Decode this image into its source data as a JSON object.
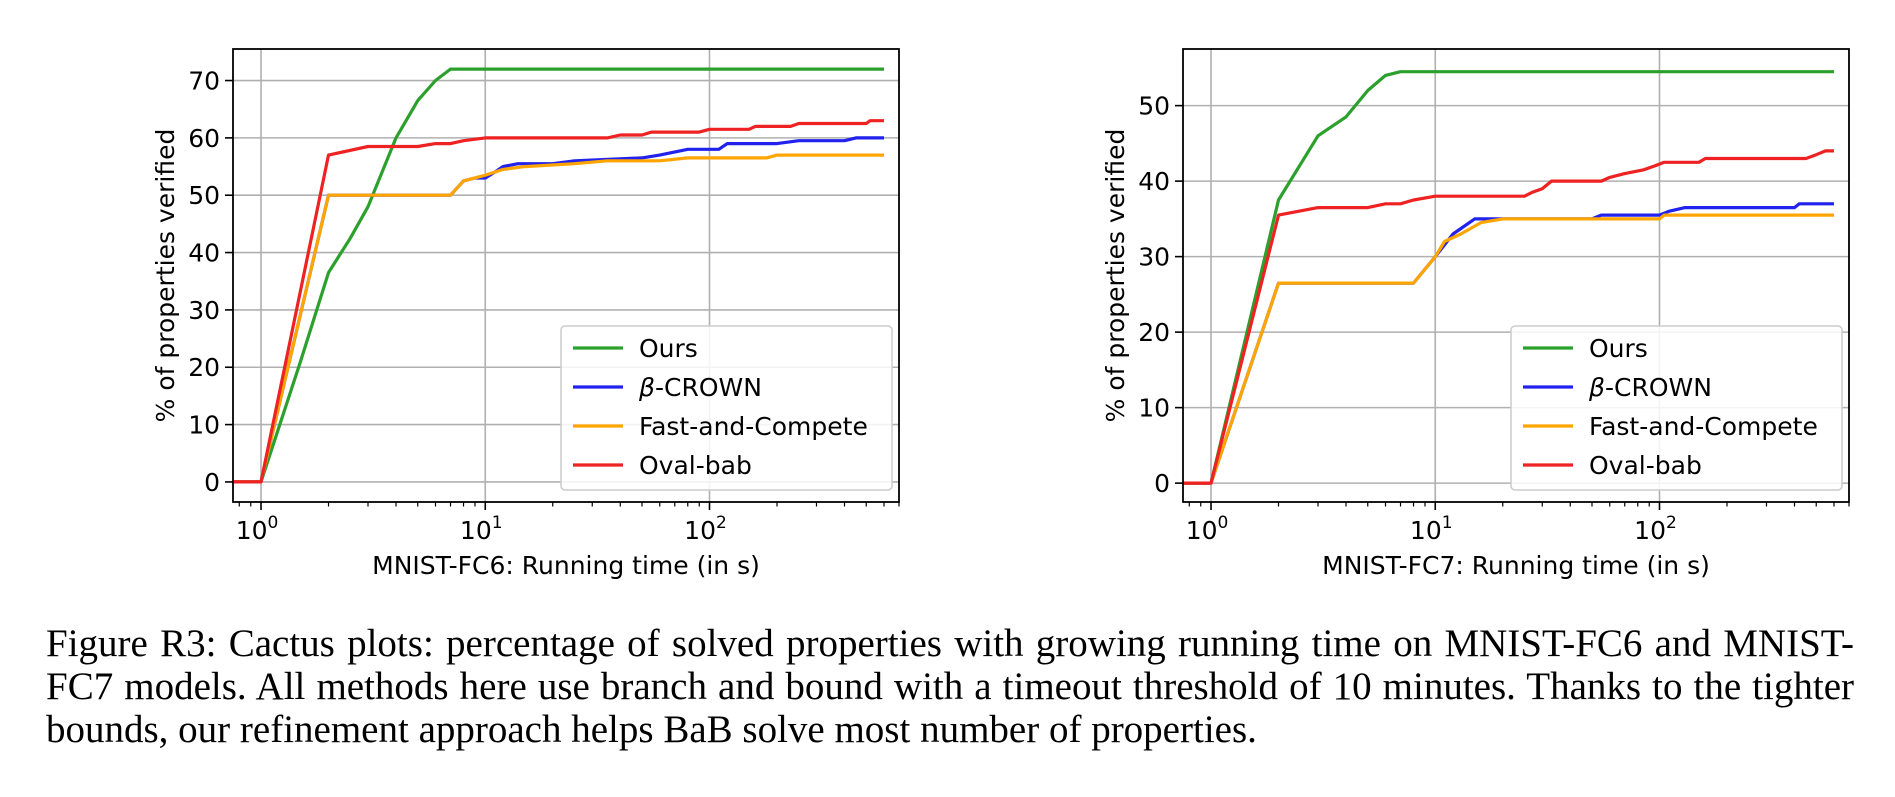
{
  "figure": {
    "caption": "Figure R3: Cactus plots: percentage of solved properties with growing running time on MNIST-FC6 and MNIST-FC7 models. All methods here use branch and bound with a timeout threshold of 10 minutes. Thanks to the tighter bounds, our refinement approach helps BaB solve most number of properties."
  },
  "colors": {
    "Ours": "#2ca02c",
    "beta-CROWN": "#2222ee",
    "Fast-and-Compete": "#ffa500",
    "Oval-bab": "#ee2222",
    "grid": "#b0b0b0"
  },
  "chart_data": [
    {
      "type": "line",
      "title": "",
      "xlabel": "MNIST-FC6: Running time (in s)",
      "ylabel": "% of properties verified",
      "xscale": "log",
      "xlim": [
        0.75,
        700
      ],
      "ylim": [
        -3.5,
        75.5
      ],
      "yticks": [
        0,
        10,
        20,
        30,
        40,
        50,
        60,
        70
      ],
      "xticks": [
        {
          "value": 1,
          "base": "10",
          "exp": "0"
        },
        {
          "value": 10,
          "base": "10",
          "exp": "1"
        },
        {
          "value": 100,
          "base": "10",
          "exp": "2"
        }
      ],
      "grid": true,
      "legend_position": "lower-right",
      "series": [
        {
          "name": "Ours",
          "label": "Ours",
          "points": [
            [
              0.75,
              0
            ],
            [
              1,
              0
            ],
            [
              1.5,
              21
            ],
            [
              2,
              36.5
            ],
            [
              2.5,
              42.5
            ],
            [
              3,
              48
            ],
            [
              4,
              60
            ],
            [
              5,
              66.5
            ],
            [
              6,
              70
            ],
            [
              7,
              72
            ],
            [
              600,
              72
            ]
          ]
        },
        {
          "name": "beta-CROWN",
          "label": "-CROWN",
          "label_prefix": "β",
          "points": [
            [
              0.75,
              0
            ],
            [
              1,
              0
            ],
            [
              2,
              50
            ],
            [
              7,
              50
            ],
            [
              8,
              52.5
            ],
            [
              9,
              53
            ],
            [
              10,
              53
            ],
            [
              11,
              54
            ],
            [
              12,
              55
            ],
            [
              14,
              55.5
            ],
            [
              20,
              55.5
            ],
            [
              25,
              56
            ],
            [
              50,
              56.5
            ],
            [
              60,
              57
            ],
            [
              80,
              58
            ],
            [
              110,
              58
            ],
            [
              120,
              59
            ],
            [
              200,
              59
            ],
            [
              250,
              59.5
            ],
            [
              400,
              59.5
            ],
            [
              450,
              60
            ],
            [
              600,
              60
            ]
          ]
        },
        {
          "name": "Fast-and-Compete",
          "label": "Fast-and-Compete",
          "points": [
            [
              0.75,
              0
            ],
            [
              1,
              0
            ],
            [
              2,
              50
            ],
            [
              7,
              50
            ],
            [
              8,
              52.5
            ],
            [
              10,
              53.5
            ],
            [
              12,
              54.5
            ],
            [
              15,
              55
            ],
            [
              25,
              55.5
            ],
            [
              35,
              56
            ],
            [
              60,
              56
            ],
            [
              80,
              56.5
            ],
            [
              180,
              56.5
            ],
            [
              200,
              57
            ],
            [
              600,
              57
            ]
          ]
        },
        {
          "name": "Oval-bab",
          "label": "Oval-bab",
          "points": [
            [
              0.75,
              0
            ],
            [
              1,
              0
            ],
            [
              2,
              57
            ],
            [
              3,
              58.5
            ],
            [
              4.5,
              58.5
            ],
            [
              5,
              58.5
            ],
            [
              6,
              59
            ],
            [
              7,
              59
            ],
            [
              8,
              59.5
            ],
            [
              10,
              60
            ],
            [
              35,
              60
            ],
            [
              40,
              60.5
            ],
            [
              50,
              60.5
            ],
            [
              55,
              61
            ],
            [
              90,
              61
            ],
            [
              100,
              61.5
            ],
            [
              150,
              61.5
            ],
            [
              160,
              62
            ],
            [
              230,
              62
            ],
            [
              250,
              62.5
            ],
            [
              500,
              62.5
            ],
            [
              520,
              63
            ],
            [
              600,
              63
            ]
          ]
        }
      ]
    },
    {
      "type": "line",
      "title": "",
      "xlabel": "MNIST-FC7: Running time (in s)",
      "ylabel": "% of properties verified",
      "xscale": "log",
      "xlim": [
        0.75,
        700
      ],
      "ylim": [
        -2.5,
        57.5
      ],
      "yticks": [
        0,
        10,
        20,
        30,
        40,
        50
      ],
      "xticks": [
        {
          "value": 1,
          "base": "10",
          "exp": "0"
        },
        {
          "value": 10,
          "base": "10",
          "exp": "1"
        },
        {
          "value": 100,
          "base": "10",
          "exp": "2"
        }
      ],
      "grid": true,
      "legend_position": "lower-right",
      "series": [
        {
          "name": "Ours",
          "label": "Ours",
          "points": [
            [
              0.75,
              0
            ],
            [
              1,
              0
            ],
            [
              2,
              37.5
            ],
            [
              3,
              46
            ],
            [
              4,
              48.5
            ],
            [
              5,
              52
            ],
            [
              6,
              54
            ],
            [
              7,
              54.5
            ],
            [
              600,
              54.5
            ]
          ]
        },
        {
          "name": "beta-CROWN",
          "label": "-CROWN",
          "label_prefix": "β",
          "points": [
            [
              0.75,
              0
            ],
            [
              1,
              0
            ],
            [
              2,
              26.5
            ],
            [
              8,
              26.5
            ],
            [
              10,
              30
            ],
            [
              12,
              33
            ],
            [
              15,
              35
            ],
            [
              50,
              35
            ],
            [
              55,
              35.5
            ],
            [
              100,
              35.5
            ],
            [
              110,
              36
            ],
            [
              130,
              36.5
            ],
            [
              400,
              36.5
            ],
            [
              420,
              37
            ],
            [
              600,
              37
            ]
          ]
        },
        {
          "name": "Fast-and-Compete",
          "label": "Fast-and-Compete",
          "points": [
            [
              0.75,
              0
            ],
            [
              1,
              0
            ],
            [
              2,
              26.5
            ],
            [
              8,
              26.5
            ],
            [
              10,
              30
            ],
            [
              11,
              32
            ],
            [
              13,
              33
            ],
            [
              16,
              34.5
            ],
            [
              20,
              35
            ],
            [
              100,
              35
            ],
            [
              105,
              35.5
            ],
            [
              600,
              35.5
            ]
          ]
        },
        {
          "name": "Oval-bab",
          "label": "Oval-bab",
          "points": [
            [
              0.75,
              0
            ],
            [
              1,
              0
            ],
            [
              2,
              35.5
            ],
            [
              3,
              36.5
            ],
            [
              5,
              36.5
            ],
            [
              6,
              37
            ],
            [
              7,
              37
            ],
            [
              8,
              37.5
            ],
            [
              10,
              38
            ],
            [
              25,
              38
            ],
            [
              27,
              38.5
            ],
            [
              30,
              39
            ],
            [
              33,
              40
            ],
            [
              55,
              40
            ],
            [
              60,
              40.5
            ],
            [
              70,
              41
            ],
            [
              85,
              41.5
            ],
            [
              95,
              42
            ],
            [
              105,
              42.5
            ],
            [
              150,
              42.5
            ],
            [
              160,
              43
            ],
            [
              450,
              43
            ],
            [
              500,
              43.5
            ],
            [
              550,
              44
            ],
            [
              600,
              44
            ]
          ]
        }
      ]
    }
  ]
}
